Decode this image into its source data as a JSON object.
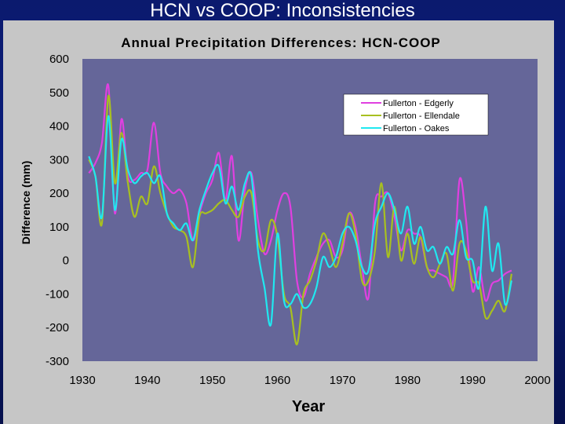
{
  "slide": {
    "title": "HCN vs COOP: Inconsistencies"
  },
  "chart_data": {
    "type": "line",
    "title": "Annual Precipitation Differences: HCN-COOP",
    "xlabel": "Year",
    "ylabel": "Difference (mm)",
    "xlim": [
      1930,
      2000
    ],
    "ylim": [
      -300,
      600
    ],
    "x_ticks": [
      1930,
      1940,
      1950,
      1960,
      1970,
      1980,
      1990,
      2000
    ],
    "y_ticks": [
      -300,
      -200,
      -100,
      0,
      100,
      200,
      300,
      400,
      500,
      600
    ],
    "grid": false,
    "legend_position": "top-right",
    "plot_background": "#656699",
    "series": [
      {
        "name": "Fullerton - Edgerly",
        "color": "#e040e0",
        "x": [
          1931,
          1932,
          1933,
          1934,
          1935,
          1936,
          1937,
          1938,
          1939,
          1940,
          1941,
          1942,
          1943,
          1944,
          1945,
          1946,
          1947,
          1948,
          1949,
          1950,
          1951,
          1952,
          1953,
          1954,
          1955,
          1956,
          1957,
          1958,
          1959,
          1960,
          1961,
          1962,
          1963,
          1964,
          1965,
          1966,
          1967,
          1968,
          1969,
          1970,
          1971,
          1972,
          1973,
          1974,
          1975,
          1976,
          1977,
          1978,
          1979,
          1980,
          1981,
          1982,
          1983,
          1984,
          1985,
          1986,
          1987,
          1988,
          1989,
          1990,
          1991,
          1992,
          1993,
          1994,
          1995,
          1996
        ],
        "y": [
          260,
          290,
          350,
          520,
          140,
          420,
          250,
          240,
          260,
          270,
          410,
          260,
          220,
          200,
          210,
          170,
          60,
          140,
          200,
          240,
          320,
          180,
          310,
          60,
          210,
          260,
          120,
          20,
          60,
          150,
          200,
          160,
          -60,
          -110,
          -40,
          10,
          50,
          60,
          10,
          30,
          140,
          100,
          -20,
          -110,
          170,
          190,
          200,
          130,
          30,
          90,
          80,
          70,
          -20,
          -30,
          -40,
          -50,
          -60,
          240,
          120,
          -90,
          -20,
          -120,
          -70,
          -60,
          -40,
          -30
        ]
      },
      {
        "name": "Fullerton - Ellendale",
        "color": "#a8c020",
        "x": [
          1931,
          1932,
          1933,
          1934,
          1935,
          1936,
          1937,
          1938,
          1939,
          1940,
          1941,
          1942,
          1943,
          1944,
          1945,
          1946,
          1947,
          1948,
          1949,
          1950,
          1951,
          1952,
          1953,
          1954,
          1955,
          1956,
          1957,
          1958,
          1959,
          1960,
          1961,
          1962,
          1963,
          1964,
          1965,
          1966,
          1967,
          1968,
          1969,
          1970,
          1971,
          1972,
          1973,
          1974,
          1975,
          1976,
          1977,
          1978,
          1979,
          1980,
          1981,
          1982,
          1983,
          1984,
          1985,
          1986,
          1987,
          1988,
          1989,
          1990,
          1991,
          1992,
          1993,
          1994,
          1995,
          1996
        ],
        "y": [
          300,
          250,
          110,
          490,
          230,
          380,
          230,
          130,
          190,
          170,
          280,
          200,
          140,
          100,
          90,
          70,
          -20,
          130,
          140,
          150,
          170,
          180,
          150,
          130,
          190,
          200,
          60,
          30,
          120,
          70,
          -100,
          -140,
          -250,
          -100,
          -60,
          0,
          80,
          40,
          -20,
          50,
          140,
          80,
          -60,
          -60,
          30,
          230,
          10,
          160,
          0,
          80,
          -10,
          70,
          -20,
          -50,
          -10,
          20,
          -90,
          50,
          30,
          -60,
          -70,
          -170,
          -150,
          -120,
          -150,
          -40
        ]
      },
      {
        "name": "Fullerton - Oakes",
        "color": "#20e8f0",
        "x": [
          1931,
          1932,
          1933,
          1934,
          1935,
          1936,
          1937,
          1938,
          1939,
          1940,
          1941,
          1942,
          1943,
          1944,
          1945,
          1946,
          1947,
          1948,
          1949,
          1950,
          1951,
          1952,
          1953,
          1954,
          1955,
          1956,
          1957,
          1958,
          1959,
          1960,
          1961,
          1962,
          1963,
          1964,
          1965,
          1966,
          1967,
          1968,
          1969,
          1970,
          1971,
          1972,
          1973,
          1974,
          1975,
          1976,
          1977,
          1978,
          1979,
          1980,
          1981,
          1982,
          1983,
          1984,
          1985,
          1986,
          1987,
          1988,
          1989,
          1990,
          1991,
          1992,
          1993,
          1994,
          1995,
          1996
        ],
        "y": [
          310,
          250,
          130,
          430,
          150,
          360,
          270,
          230,
          250,
          260,
          230,
          250,
          140,
          110,
          90,
          110,
          60,
          150,
          210,
          260,
          280,
          170,
          220,
          150,
          230,
          250,
          30,
          -80,
          -190,
          80,
          -120,
          -130,
          -100,
          -140,
          -130,
          -80,
          10,
          -20,
          10,
          80,
          100,
          60,
          -20,
          -30,
          110,
          160,
          200,
          150,
          80,
          160,
          50,
          100,
          30,
          40,
          -10,
          40,
          20,
          120,
          10,
          0,
          -80,
          160,
          -30,
          50,
          -130,
          -60
        ]
      }
    ]
  }
}
